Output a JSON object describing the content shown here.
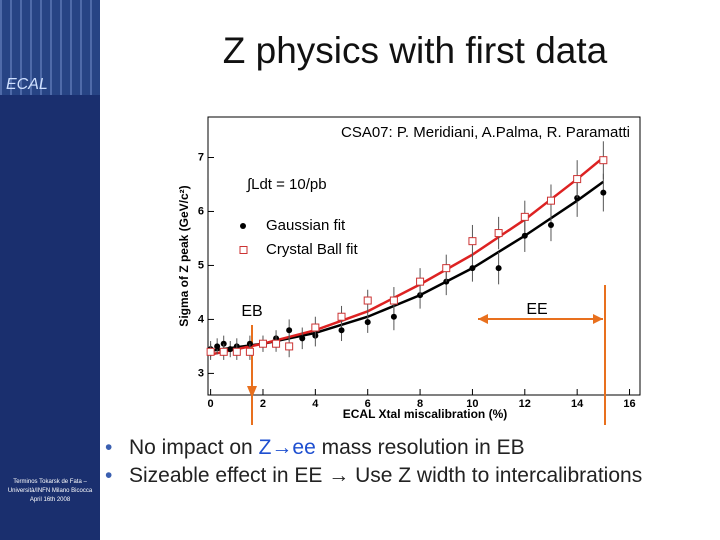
{
  "slide": {
    "title": "Z physics with first data",
    "logo": "ECAL",
    "footer": "Terminos Tokarsk de Fata – Università/INFN Milano Bicocca April 16th 2008",
    "bullets": [
      [
        "No impact on ",
        "Z→ee",
        " mass resolution in EB"
      ],
      [
        "Sizeable effect in EE → Use Z width to intercalibrations"
      ]
    ]
  },
  "chart_data": {
    "type": "scatter",
    "x_label": "ECAL Xtal miscalibration (%)",
    "y_label": "Sigma of Z peak (GeV/c²)",
    "annotations": [
      "CSA07: P. Meridiani, A.Palma, R. Paramatti",
      "∫Ldt = 10/pb",
      "EB",
      "EE"
    ],
    "xlim": [
      -0.1,
      16.4
    ],
    "ylim": [
      2.6,
      7.75
    ],
    "xticks": [
      0,
      2,
      4,
      6,
      8,
      10,
      12,
      14,
      16
    ],
    "yticks": [
      3,
      4,
      5,
      6,
      7
    ],
    "legend": "upper left",
    "series": [
      {
        "name": "Gaussian fit",
        "color": "#000000",
        "marker": "circle",
        "x": [
          0,
          0.25,
          0.5,
          0.75,
          1,
          1.5,
          2,
          2.5,
          3,
          3.5,
          4,
          5,
          6,
          7,
          8,
          9,
          10,
          11,
          12,
          13,
          14,
          15
        ],
        "values": [
          3.45,
          3.5,
          3.55,
          3.45,
          3.5,
          3.55,
          3.55,
          3.65,
          3.8,
          3.65,
          3.7,
          3.8,
          3.95,
          4.05,
          4.45,
          4.7,
          4.95,
          4.95,
          5.55,
          5.75,
          6.25,
          6.35
        ],
        "errors": [
          0.15,
          0.15,
          0.15,
          0.15,
          0.15,
          0.15,
          0.15,
          0.15,
          0.2,
          0.2,
          0.2,
          0.2,
          0.2,
          0.25,
          0.25,
          0.25,
          0.25,
          0.3,
          0.3,
          0.3,
          0.35,
          0.35
        ]
      },
      {
        "name": "Crystal Ball fit",
        "color": "#cc3333",
        "marker": "square",
        "x": [
          0,
          0.5,
          1,
          1.5,
          2,
          2.5,
          3,
          4,
          5,
          6,
          7,
          8,
          9,
          10,
          11,
          12,
          13,
          14,
          15
        ],
        "values": [
          3.4,
          3.4,
          3.4,
          3.4,
          3.55,
          3.55,
          3.5,
          3.85,
          4.05,
          4.35,
          4.35,
          4.7,
          4.95,
          5.45,
          5.6,
          5.9,
          6.2,
          6.6,
          6.95
        ],
        "errors": [
          0.15,
          0.15,
          0.15,
          0.15,
          0.15,
          0.15,
          0.2,
          0.2,
          0.2,
          0.2,
          0.25,
          0.25,
          0.25,
          0.3,
          0.3,
          0.3,
          0.3,
          0.35,
          0.35
        ]
      }
    ],
    "fits": [
      {
        "color": "#000000",
        "x": [
          0,
          2,
          4,
          6,
          8,
          10,
          12,
          14,
          15
        ],
        "values": [
          3.42,
          3.55,
          3.75,
          4.05,
          4.45,
          4.95,
          5.55,
          6.2,
          6.55
        ]
      },
      {
        "color": "#dd2222",
        "x": [
          0,
          2,
          4,
          6,
          8,
          10,
          12,
          14,
          15
        ],
        "values": [
          3.35,
          3.55,
          3.8,
          4.15,
          4.65,
          5.2,
          5.85,
          6.6,
          7.0
        ]
      }
    ]
  }
}
